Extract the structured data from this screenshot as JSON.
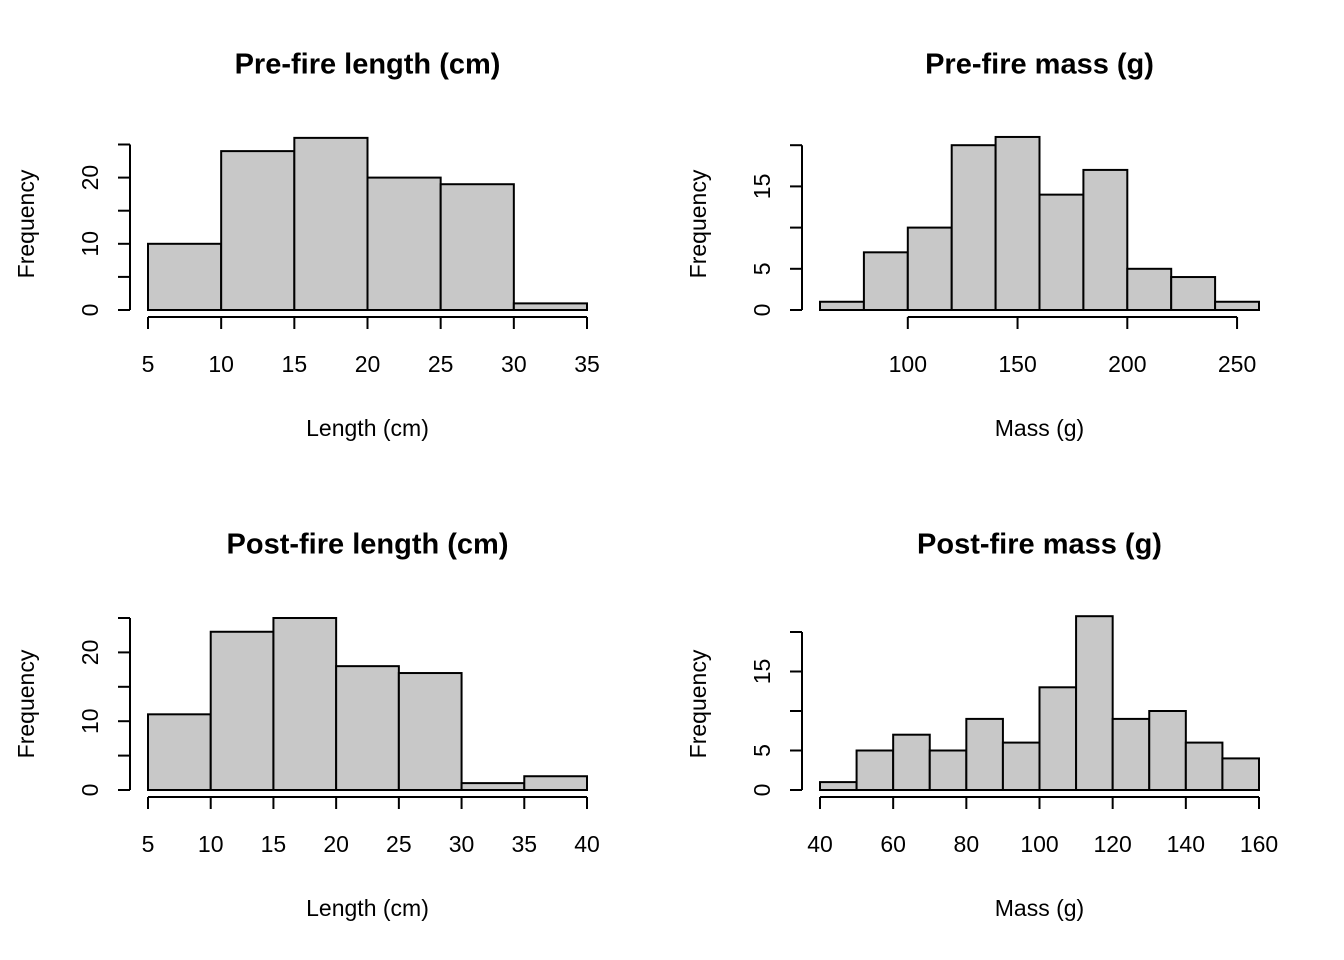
{
  "chart_data": [
    {
      "type": "bar",
      "title": "Pre-fire length (cm)",
      "xlabel": "Length (cm)",
      "ylabel": "Frequency",
      "bin_edges": [
        5,
        10,
        15,
        20,
        25,
        30,
        35
      ],
      "values": [
        10,
        24,
        26,
        20,
        19,
        1
      ],
      "xticks": [
        5,
        10,
        15,
        20,
        25,
        30,
        35
      ],
      "yticks": [
        0,
        5,
        10,
        15,
        20,
        25
      ],
      "ytick_labels": [
        "0",
        "",
        "10",
        "",
        "20",
        ""
      ],
      "ylim": [
        0,
        26
      ],
      "grid": false
    },
    {
      "type": "bar",
      "title": "Pre-fire mass (g)",
      "xlabel": "Mass (g)",
      "ylabel": "Frequency",
      "bin_edges": [
        60,
        80,
        100,
        120,
        140,
        160,
        180,
        200,
        220,
        240,
        260
      ],
      "values": [
        1,
        7,
        10,
        20,
        21,
        14,
        17,
        5,
        4,
        1
      ],
      "xticks": [
        100,
        150,
        200,
        250
      ],
      "yticks": [
        0,
        5,
        10,
        15,
        20
      ],
      "ytick_labels": [
        "0",
        "5",
        "",
        "15",
        ""
      ],
      "ylim": [
        0,
        21
      ],
      "grid": false
    },
    {
      "type": "bar",
      "title": "Post-fire length (cm)",
      "xlabel": "Length (cm)",
      "ylabel": "Frequency",
      "bin_edges": [
        5,
        10,
        15,
        20,
        25,
        30,
        35,
        40
      ],
      "values": [
        11,
        23,
        25,
        18,
        17,
        1,
        2
      ],
      "xticks": [
        5,
        10,
        15,
        20,
        25,
        30,
        35,
        40
      ],
      "yticks": [
        0,
        5,
        10,
        15,
        20,
        25
      ],
      "ytick_labels": [
        "0",
        "",
        "10",
        "",
        "20",
        ""
      ],
      "ylim": [
        0,
        25
      ],
      "grid": false
    },
    {
      "type": "bar",
      "title": "Post-fire mass (g)",
      "xlabel": "Mass (g)",
      "ylabel": "Frequency",
      "bin_edges": [
        40,
        50,
        60,
        70,
        80,
        90,
        100,
        110,
        120,
        130,
        140,
        150,
        160
      ],
      "values": [
        1,
        5,
        7,
        5,
        9,
        6,
        13,
        22,
        9,
        10,
        6,
        4
      ],
      "xticks": [
        40,
        60,
        80,
        100,
        120,
        140,
        160
      ],
      "yticks": [
        0,
        5,
        10,
        15,
        20
      ],
      "ytick_labels": [
        "0",
        "5",
        "",
        "15",
        ""
      ],
      "ylim": [
        0,
        22
      ],
      "grid": false
    }
  ]
}
